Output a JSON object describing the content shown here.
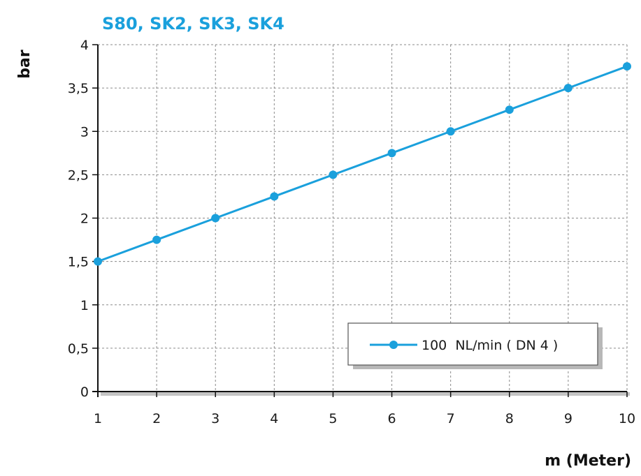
{
  "colors": {
    "accent": "#1aa0dc",
    "grid": "#8a8a8a",
    "axis": "#111111"
  },
  "chart_data": {
    "type": "line",
    "title": "S80, SK2, SK3, SK4",
    "ylabel": "bar",
    "xlabel": "m (Meter)",
    "xlim": [
      1,
      10
    ],
    "ylim": [
      0,
      4
    ],
    "x_ticks": [
      "1",
      "2",
      "3",
      "4",
      "5",
      "6",
      "7",
      "8",
      "9",
      "10"
    ],
    "y_ticks": [
      "0",
      "0,5",
      "1",
      "1,5",
      "2",
      "2,5",
      "3",
      "3,5",
      "4"
    ],
    "grid": true,
    "legend_position": "bottom-right",
    "series": [
      {
        "name": "100  NL/min ( DN 4 )",
        "x": [
          1,
          2,
          3,
          4,
          5,
          6,
          7,
          8,
          9,
          10
        ],
        "values": [
          1.5,
          1.75,
          2.0,
          2.25,
          2.5,
          2.75,
          3.0,
          3.25,
          3.5,
          3.75
        ]
      }
    ]
  }
}
